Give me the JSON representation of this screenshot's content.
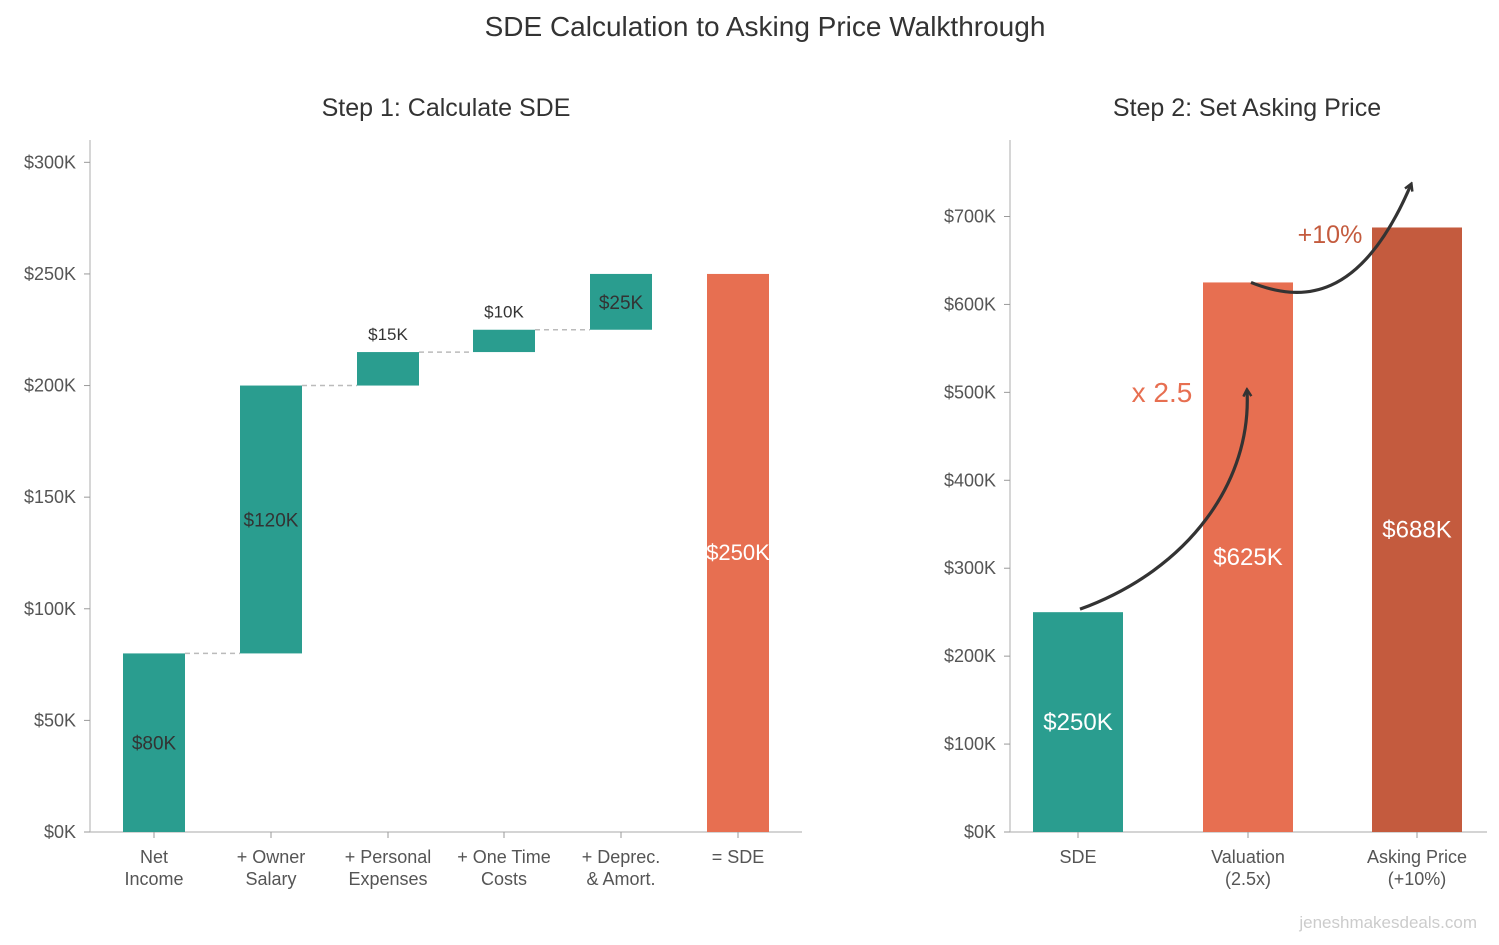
{
  "suptitle": "SDE Calculation to Asking Price Walkthrough",
  "watermark": "jeneshmakesdeals.com",
  "colors": {
    "teal": "#2a9d8f",
    "orange": "#e76f51",
    "dark_orange": "#c45b3e",
    "arrow": "#333333",
    "connector": "#bbbbbb"
  },
  "chart_data": [
    {
      "type": "bar",
      "subtype": "waterfall",
      "title": "Step 1: Calculate SDE",
      "categories": [
        "Net\nIncome",
        "+ Owner\nSalary",
        "+ Personal\nExpenses",
        "+ One Time\nCosts",
        "+ Deprec.\n& Amort.",
        "= SDE"
      ],
      "values": [
        80,
        120,
        15,
        10,
        25,
        250
      ],
      "bases": [
        0,
        80,
        200,
        215,
        225,
        0
      ],
      "data_labels": [
        "$80K",
        "$120K",
        "$15K",
        "$10K",
        "$25K",
        "$250K"
      ],
      "bar_colors": [
        "#2a9d8f",
        "#2a9d8f",
        "#2a9d8f",
        "#2a9d8f",
        "#2a9d8f",
        "#e76f51"
      ],
      "unit": "thousands USD",
      "ylim": [
        0,
        310
      ],
      "yticks": [
        0,
        50,
        100,
        150,
        200,
        250,
        300
      ],
      "ytick_labels": [
        "$0K",
        "$50K",
        "$100K",
        "$150K",
        "$200K",
        "$250K",
        "$300K"
      ],
      "connectors": "dashed",
      "grid": false
    },
    {
      "type": "bar",
      "title": "Step 2: Set Asking Price",
      "categories": [
        "SDE",
        "Valuation\n(2.5x)",
        "Asking Price\n(+10%)"
      ],
      "values": [
        250,
        625,
        687.5
      ],
      "data_labels": [
        "$250K",
        "$625K",
        "$688K"
      ],
      "bar_colors": [
        "#2a9d8f",
        "#e76f51",
        "#c45b3e"
      ],
      "unit": "thousands USD",
      "ylim": [
        0,
        787
      ],
      "yticks": [
        0,
        100,
        200,
        300,
        400,
        500,
        600,
        700
      ],
      "ytick_labels": [
        "$0K",
        "$100K",
        "$200K",
        "$300K",
        "$400K",
        "$500K",
        "$600K",
        "$700K"
      ],
      "annotations": [
        {
          "text": "x 2.5",
          "from": "SDE",
          "to": "Valuation\n(2.5x)",
          "color": "#e76f51"
        },
        {
          "text": "+10%",
          "from": "Valuation\n(2.5x)",
          "to": "Asking Price\n(+10%)",
          "color": "#c45b3e"
        }
      ],
      "grid": false
    }
  ]
}
